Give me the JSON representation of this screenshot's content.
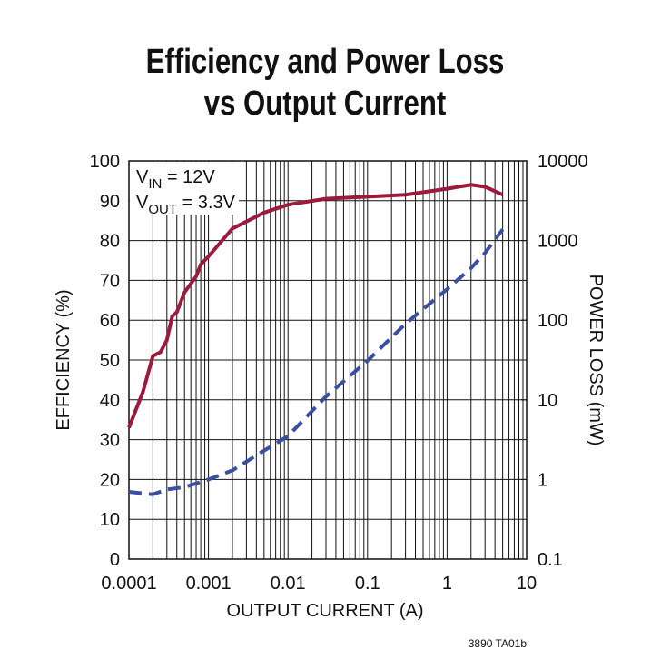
{
  "chart_data": {
    "type": "line",
    "title": [
      "Efficiency and Power Loss",
      "vs Output Current"
    ],
    "xlabel": "OUTPUT CURRENT (A)",
    "ylabel": "EFFICIENCY (%)",
    "y2label": "POWER LOSS (mW)",
    "annotations": [
      [
        "V",
        "IN",
        " = 12V"
      ],
      [
        "V",
        "OUT",
        " = 3.3V"
      ]
    ],
    "footnote": "3890 TA01b",
    "xscale": "log",
    "y2scale": "log",
    "grid": true,
    "xlim": [
      0.0001,
      10
    ],
    "xticks": [
      0.0001,
      0.001,
      0.01,
      0.1,
      1,
      10
    ],
    "ylim": [
      0,
      100
    ],
    "yticks": [
      0,
      10,
      20,
      30,
      40,
      50,
      60,
      70,
      80,
      90,
      100
    ],
    "y2lim": [
      0.1,
      10000
    ],
    "y2ticks": [
      0.1,
      1,
      10,
      100,
      1000,
      10000
    ],
    "series": [
      {
        "name": "Efficiency",
        "color": "#9c1a3c",
        "dash": false,
        "x": [
          0.0001,
          0.00015,
          0.0002,
          0.00025,
          0.0003,
          0.00035,
          0.0004,
          0.0005,
          0.0007,
          0.0008,
          0.001,
          0.002,
          0.005,
          0.01,
          0.03,
          0.1,
          0.3,
          1,
          2,
          3,
          5
        ],
        "values": [
          33,
          42,
          51,
          52,
          55,
          61,
          62,
          67,
          71,
          74,
          76,
          83,
          87,
          89,
          90.5,
          91,
          91.5,
          93,
          94,
          93.5,
          91.5
        ]
      },
      {
        "name": "Power Loss",
        "color": "#3b4ea2",
        "dash": true,
        "axis": "y2",
        "x": [
          0.0001,
          0.0002,
          0.0003,
          0.0005,
          0.001,
          0.002,
          0.005,
          0.01,
          0.03,
          0.1,
          0.3,
          1,
          2,
          3,
          5
        ],
        "values": [
          0.7,
          0.65,
          0.75,
          0.8,
          1,
          1.3,
          2.3,
          3.5,
          11,
          31,
          90,
          245,
          450,
          700,
          1380
        ]
      }
    ]
  }
}
